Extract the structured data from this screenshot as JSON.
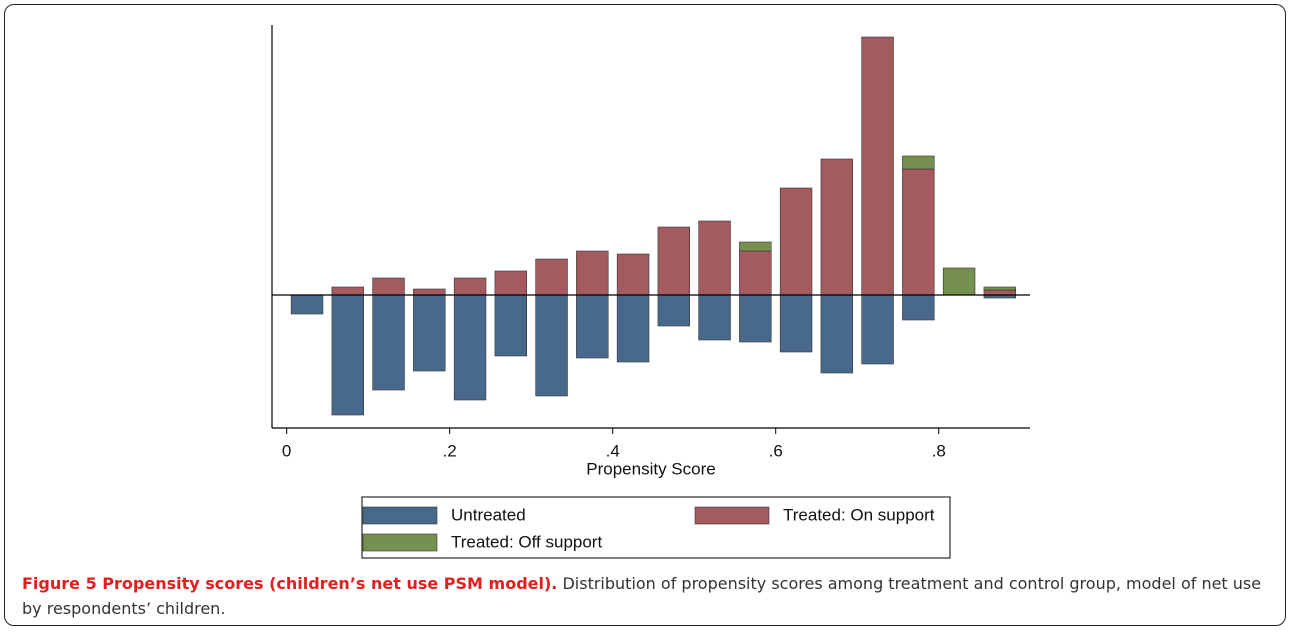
{
  "chart_data": {
    "type": "bar",
    "xlabel": "Propensity Score",
    "x": [
      0.025,
      0.075,
      0.125,
      0.175,
      0.225,
      0.275,
      0.325,
      0.375,
      0.425,
      0.475,
      0.525,
      0.575,
      0.625,
      0.675,
      0.725,
      0.775,
      0.825,
      0.875
    ],
    "series": [
      {
        "name": "Untreated",
        "color": "#48698c",
        "values": [
          -1.9,
          -12.0,
          -9.5,
          -7.6,
          -10.5,
          -6.1,
          -10.1,
          -6.3,
          -6.7,
          -3.1,
          -4.5,
          -4.7,
          -5.7,
          -7.8,
          -6.9,
          -2.5,
          0,
          -0.3
        ]
      },
      {
        "name": "Treated: On support",
        "color": "#a35b60",
        "values": [
          0,
          0.8,
          1.7,
          0.6,
          1.7,
          2.4,
          3.6,
          4.4,
          4.1,
          6.8,
          7.4,
          4.4,
          10.7,
          13.6,
          25.8,
          12.6,
          0,
          0.5
        ]
      },
      {
        "name": "Treated: Off support",
        "color": "#76914f",
        "values": [
          0,
          0,
          0,
          0,
          0,
          0,
          0,
          0,
          0,
          0,
          0,
          0.9,
          0,
          0,
          0,
          1.3,
          2.7,
          0.3
        ]
      }
    ],
    "xlim": [
      -0.018,
      0.912
    ],
    "ylim": [
      -13.3,
      27
    ],
    "xticks": [
      0,
      {
        "value": 0.2,
        "label": ".2"
      },
      {
        "value": 0.4,
        "label": ".4"
      },
      {
        "value": 0.6,
        "label": ".6"
      },
      {
        "value": 0.8,
        "label": ".8"
      }
    ],
    "legend": "bottom"
  },
  "caption": {
    "title": "Figure 5 Propensity scores (children’s net use PSM model).",
    "text": "Distribution of propensity scores among treatment and control group, model of net use by respondents’ children."
  }
}
